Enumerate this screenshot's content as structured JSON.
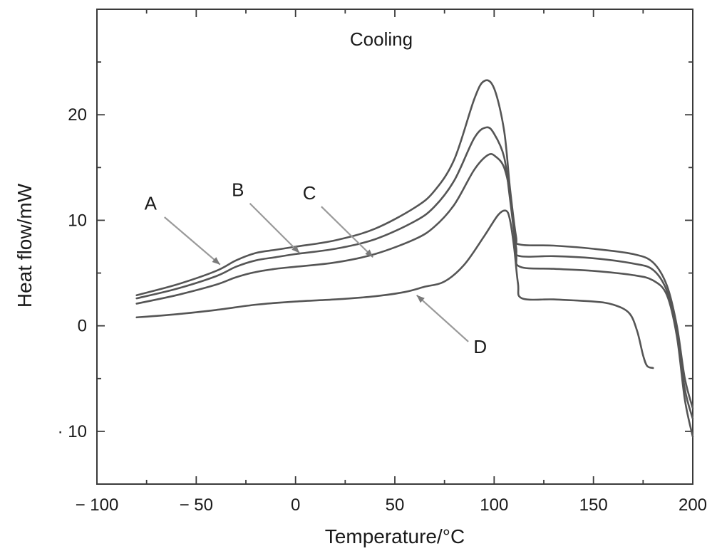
{
  "chart_data": {
    "type": "line",
    "title": "Cooling",
    "xlabel": "Temperature/°C",
    "ylabel": "Heat flow/mW",
    "xlim": [
      -100,
      200
    ],
    "ylim": [
      -15,
      30
    ],
    "x_ticks": [
      -100,
      -50,
      0,
      50,
      100,
      150,
      200
    ],
    "x_tick_labels": [
      "− 100",
      "− 50",
      "0",
      "50",
      "100",
      "150",
      "200"
    ],
    "y_ticks": [
      -10,
      0,
      10,
      20
    ],
    "y_tick_labels": [
      "· 10",
      "0",
      "10",
      "20"
    ],
    "grid": false,
    "legend": "none",
    "series": [
      {
        "name": "A",
        "points": [
          [
            -80,
            2.9
          ],
          [
            -60,
            3.9
          ],
          [
            -40,
            5.2
          ],
          [
            -30,
            6.2
          ],
          [
            -20,
            6.9
          ],
          [
            -10,
            7.2
          ],
          [
            0,
            7.5
          ],
          [
            20,
            8.1
          ],
          [
            40,
            9.2
          ],
          [
            60,
            11.2
          ],
          [
            70,
            12.8
          ],
          [
            80,
            15.8
          ],
          [
            90,
            21.5
          ],
          [
            95,
            23.2
          ],
          [
            100,
            22.5
          ],
          [
            105,
            18.5
          ],
          [
            108,
            13.0
          ],
          [
            111,
            8.5
          ],
          [
            113,
            7.7
          ],
          [
            130,
            7.6
          ],
          [
            150,
            7.3
          ],
          [
            170,
            6.8
          ],
          [
            180,
            6.0
          ],
          [
            187,
            3.8
          ],
          [
            192,
            0.0
          ],
          [
            196,
            -5.0
          ],
          [
            200,
            -7.8
          ]
        ]
      },
      {
        "name": "B",
        "points": [
          [
            -80,
            2.6
          ],
          [
            -60,
            3.5
          ],
          [
            -40,
            4.7
          ],
          [
            -30,
            5.6
          ],
          [
            -20,
            6.2
          ],
          [
            -10,
            6.5
          ],
          [
            0,
            6.8
          ],
          [
            20,
            7.3
          ],
          [
            40,
            8.2
          ],
          [
            60,
            9.9
          ],
          [
            70,
            11.3
          ],
          [
            80,
            13.8
          ],
          [
            90,
            17.8
          ],
          [
            96,
            18.8
          ],
          [
            100,
            18.2
          ],
          [
            105,
            16.0
          ],
          [
            108,
            12.0
          ],
          [
            111,
            7.5
          ],
          [
            113,
            6.6
          ],
          [
            130,
            6.6
          ],
          [
            150,
            6.4
          ],
          [
            170,
            5.9
          ],
          [
            180,
            5.3
          ],
          [
            187,
            3.3
          ],
          [
            192,
            -0.5
          ],
          [
            196,
            -6.0
          ],
          [
            200,
            -8.8
          ]
        ]
      },
      {
        "name": "C",
        "points": [
          [
            -80,
            2.1
          ],
          [
            -60,
            2.9
          ],
          [
            -40,
            3.9
          ],
          [
            -30,
            4.6
          ],
          [
            -20,
            5.1
          ],
          [
            -10,
            5.4
          ],
          [
            0,
            5.6
          ],
          [
            20,
            6.0
          ],
          [
            40,
            6.8
          ],
          [
            60,
            8.2
          ],
          [
            70,
            9.4
          ],
          [
            80,
            11.5
          ],
          [
            90,
            14.8
          ],
          [
            97,
            16.2
          ],
          [
            101,
            16.0
          ],
          [
            105,
            15.0
          ],
          [
            108,
            12.5
          ],
          [
            111,
            7.0
          ],
          [
            113,
            5.6
          ],
          [
            130,
            5.4
          ],
          [
            150,
            5.2
          ],
          [
            170,
            4.8
          ],
          [
            180,
            4.3
          ],
          [
            187,
            2.9
          ],
          [
            192,
            -1.0
          ],
          [
            196,
            -7.0
          ],
          [
            200,
            -10.5
          ]
        ]
      },
      {
        "name": "D",
        "points": [
          [
            -80,
            0.8
          ],
          [
            -60,
            1.1
          ],
          [
            -40,
            1.5
          ],
          [
            -20,
            2.0
          ],
          [
            0,
            2.3
          ],
          [
            20,
            2.5
          ],
          [
            40,
            2.8
          ],
          [
            55,
            3.2
          ],
          [
            65,
            3.7
          ],
          [
            75,
            4.2
          ],
          [
            85,
            5.8
          ],
          [
            95,
            8.5
          ],
          [
            102,
            10.5
          ],
          [
            106,
            10.9
          ],
          [
            108,
            10.0
          ],
          [
            110,
            7.5
          ],
          [
            112,
            4.0
          ],
          [
            114,
            2.6
          ],
          [
            130,
            2.5
          ],
          [
            150,
            2.3
          ],
          [
            160,
            2.0
          ],
          [
            168,
            1.2
          ],
          [
            172,
            -0.5
          ],
          [
            175,
            -2.8
          ],
          [
            177,
            -3.8
          ],
          [
            180,
            -4.0
          ]
        ]
      }
    ],
    "annotations": [
      {
        "label": "A",
        "text_at": [
          -73,
          11.0
        ],
        "arrow_from": [
          -66,
          10.3
        ],
        "arrow_to": [
          -38,
          5.8
        ]
      },
      {
        "label": "B",
        "text_at": [
          -29,
          12.3
        ],
        "arrow_from": [
          -23,
          11.6
        ],
        "arrow_to": [
          2,
          6.9
        ]
      },
      {
        "label": "C",
        "text_at": [
          7,
          12.0
        ],
        "arrow_from": [
          13,
          11.3
        ],
        "arrow_to": [
          39,
          6.5
        ]
      },
      {
        "label": "D",
        "text_at": [
          93,
          -2.6
        ],
        "arrow_from": [
          87,
          -1.5
        ],
        "arrow_to": [
          61,
          2.9
        ]
      }
    ]
  }
}
